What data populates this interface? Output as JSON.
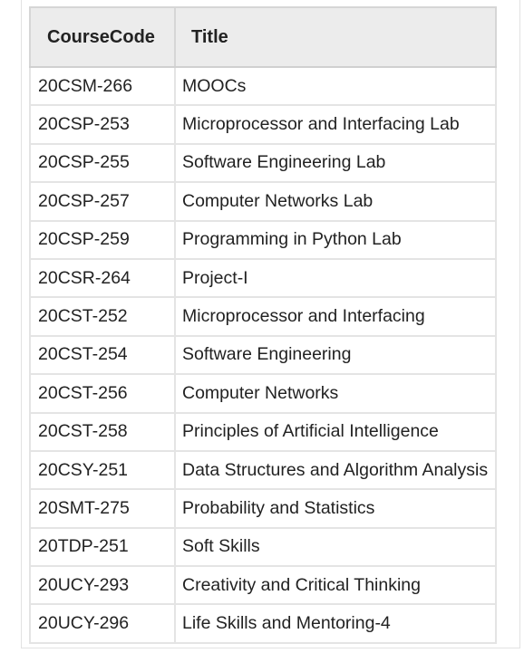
{
  "table": {
    "headers": [
      "CourseCode",
      "Title"
    ],
    "rows": [
      {
        "code": "20CSM-266",
        "title": "MOOCs"
      },
      {
        "code": "20CSP-253",
        "title": "Microprocessor and Interfacing Lab"
      },
      {
        "code": "20CSP-255",
        "title": "Software Engineering Lab"
      },
      {
        "code": "20CSP-257",
        "title": "Computer Networks Lab"
      },
      {
        "code": "20CSP-259",
        "title": "Programming in Python Lab"
      },
      {
        "code": "20CSR-264",
        "title": "Project-I"
      },
      {
        "code": "20CST-252",
        "title": "Microprocessor and Interfacing"
      },
      {
        "code": "20CST-254",
        "title": "Software Engineering"
      },
      {
        "code": "20CST-256",
        "title": "Computer Networks"
      },
      {
        "code": "20CST-258",
        "title": "Principles of Artificial Intelligence"
      },
      {
        "code": "20CSY-251",
        "title": "Data Structures and Algorithm Analysis"
      },
      {
        "code": "20SMT-275",
        "title": "Probability and Statistics"
      },
      {
        "code": "20TDP-251",
        "title": "Soft Skills"
      },
      {
        "code": "20UCY-293",
        "title": "Creativity and Critical Thinking"
      },
      {
        "code": "20UCY-296",
        "title": "Life Skills and Mentoring-4"
      }
    ]
  }
}
